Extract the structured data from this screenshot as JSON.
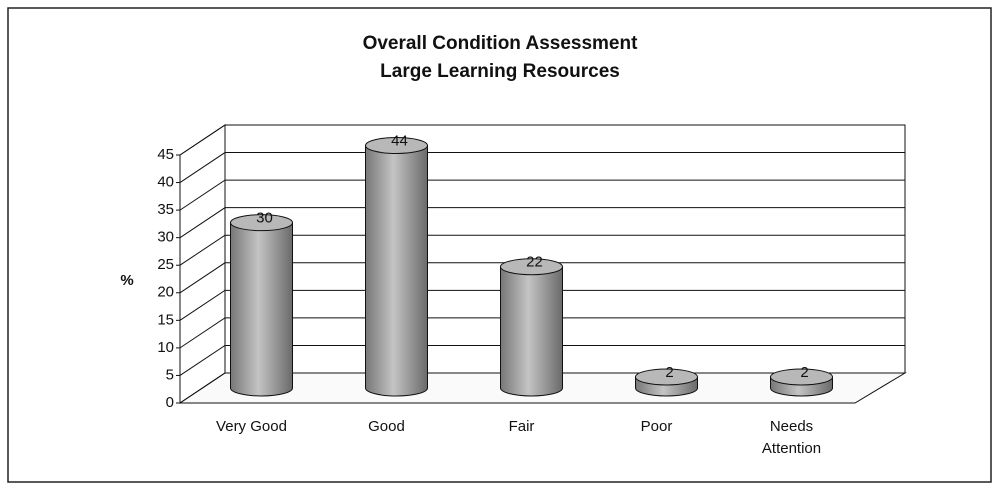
{
  "chart_data": {
    "type": "bar3d",
    "title": [
      "Overall Condition Assessment",
      "Large Learning Resources"
    ],
    "y_label": "%",
    "categories": [
      "Very Good",
      "Good",
      "Fair",
      "Poor",
      "Needs Attention"
    ],
    "values": [
      30,
      44,
      22,
      2,
      2
    ],
    "color": "#9a9a9a",
    "ylim": [
      0,
      45
    ],
    "yticks": [
      0,
      5,
      10,
      15,
      20,
      25,
      30,
      35,
      40,
      45
    ],
    "grid": true
  }
}
